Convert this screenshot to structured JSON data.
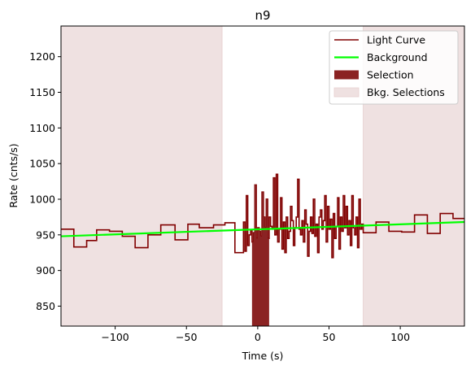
{
  "chart_data": {
    "type": "line",
    "title": "n9",
    "xlabel": "Time (s)",
    "ylabel": "Rate (cnts/s)",
    "xlim": [
      -138,
      145
    ],
    "ylim": [
      822,
      1243
    ],
    "xticks": [
      -100,
      -50,
      0,
      50,
      100
    ],
    "xtick_labels": [
      "−100",
      "−50",
      "0",
      "50",
      "100"
    ],
    "yticks": [
      850,
      900,
      950,
      1000,
      1050,
      1100,
      1150,
      1200
    ],
    "ytick_labels": [
      "850",
      "900",
      "950",
      "1000",
      "1050",
      "1100",
      "1150",
      "1200"
    ],
    "legend_position": "top-right",
    "legend": [
      {
        "label": "Light Curve",
        "kind": "line",
        "color": "#800000"
      },
      {
        "label": "Background",
        "kind": "line",
        "color": "#00ff00"
      },
      {
        "label": "Selection",
        "kind": "patch",
        "color": "#8b2323"
      },
      {
        "label": "Bkg. Selections",
        "kind": "patch",
        "color": "#efe1e1"
      }
    ],
    "colors": {
      "light_curve": "#800000",
      "background": "#00ff00",
      "selection": "#8b2323",
      "bkg_selection": "#efe1e1"
    },
    "bkg_selections": [
      [
        -138,
        -25
      ],
      [
        74,
        145
      ]
    ],
    "selection": [
      -4,
      8
    ],
    "background_line": {
      "x": [
        -138,
        145
      ],
      "y": [
        948,
        968
      ]
    },
    "light_curve": {
      "edges": [
        -138,
        -129,
        -120,
        -113,
        -104,
        -95,
        -86,
        -77,
        -68,
        -58,
        -49,
        -41,
        -31,
        -23,
        -16,
        -10,
        -9,
        -8,
        -7,
        -6,
        -5,
        -4,
        -3,
        -2,
        -1,
        0,
        1,
        2,
        3,
        4,
        5,
        6,
        7,
        8,
        9,
        10,
        11,
        12,
        13,
        14,
        15,
        16,
        17,
        18,
        19,
        20,
        21,
        22,
        23,
        24,
        25,
        26,
        27,
        28,
        29,
        30,
        31,
        32,
        33,
        34,
        35,
        36,
        37,
        38,
        39,
        40,
        41,
        42,
        43,
        44,
        45,
        46,
        47,
        48,
        49,
        50,
        51,
        52,
        53,
        54,
        55,
        56,
        57,
        58,
        59,
        60,
        61,
        62,
        63,
        64,
        65,
        66,
        67,
        68,
        69,
        70,
        71,
        72,
        73,
        74,
        83,
        92,
        101,
        110,
        119,
        128,
        137,
        145
      ],
      "counts": [
        958,
        933,
        942,
        957,
        955,
        948,
        932,
        950,
        964,
        943,
        965,
        960,
        964,
        967,
        925,
        968,
        927,
        1005,
        935,
        950,
        956,
        940,
        953,
        1020,
        945,
        960,
        955,
        948,
        1010,
        975,
        960,
        1000,
        945,
        975,
        962,
        958,
        1030,
        950,
        1035,
        940,
        958,
        1002,
        930,
        968,
        925,
        975,
        945,
        955,
        990,
        970,
        935,
        960,
        975,
        1028,
        958,
        950,
        970,
        940,
        985,
        965,
        920,
        955,
        975,
        952,
        1000,
        948,
        965,
        925,
        975,
        985,
        958,
        970,
        1005,
        940,
        990,
        958,
        972,
        918,
        980,
        945,
        962,
        1002,
        930,
        975,
        955,
        1005,
        960,
        990,
        950,
        970,
        935,
        1005,
        960,
        950,
        975,
        932,
        1000,
        958,
        965,
        953,
        968,
        955,
        954,
        978,
        952,
        980,
        973
      ]
    }
  }
}
